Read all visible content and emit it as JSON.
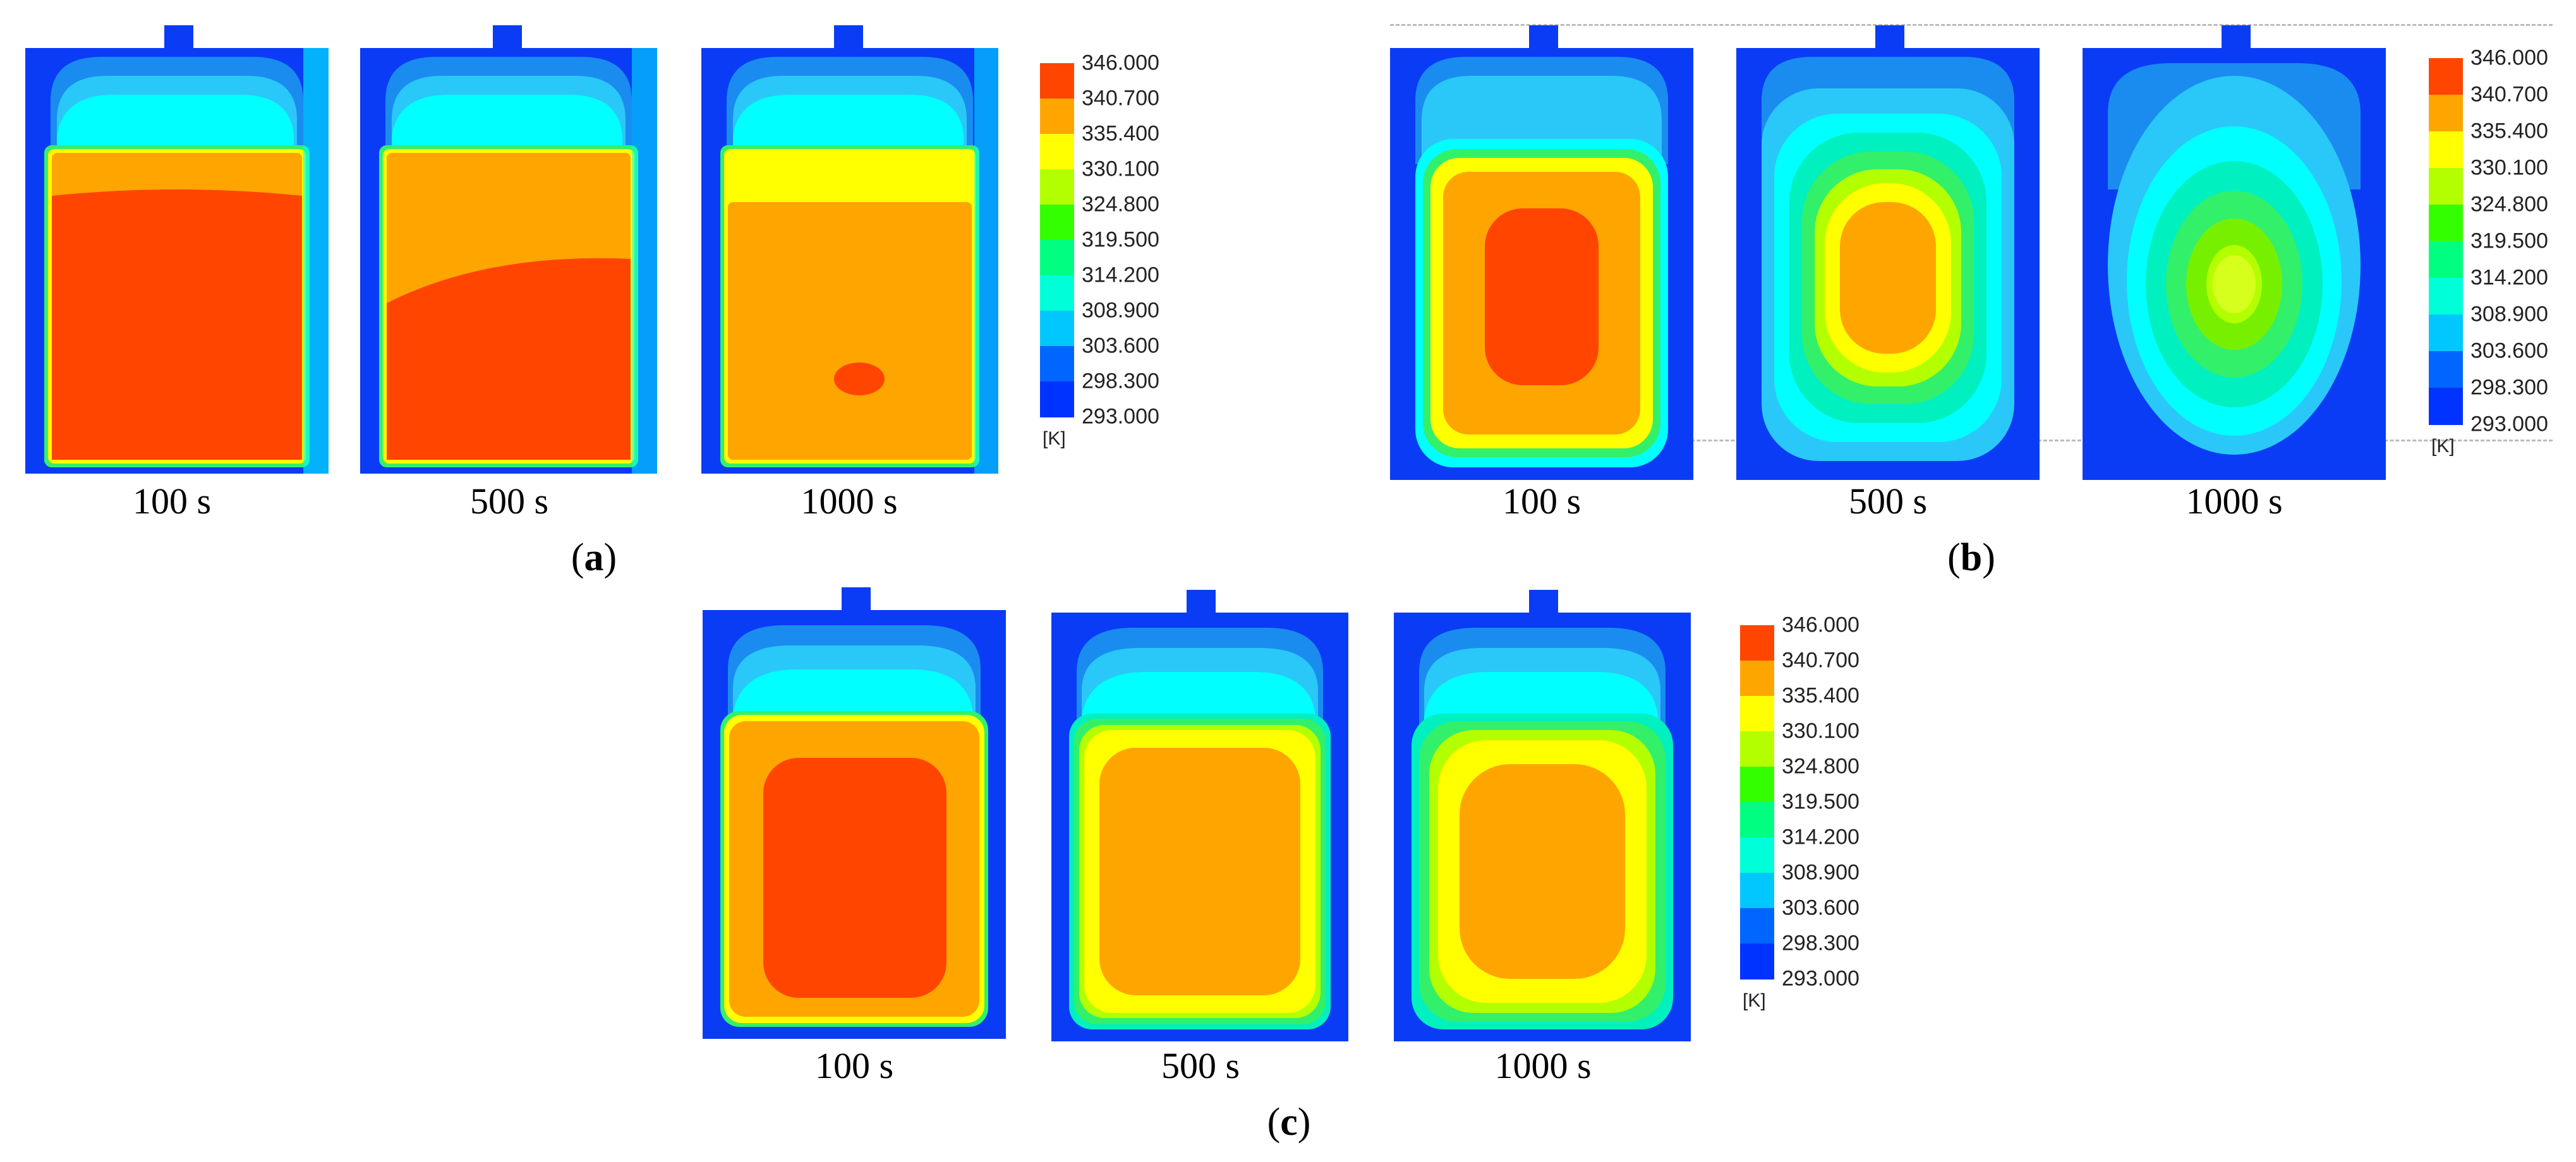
{
  "figure": {
    "panels": [
      {
        "id": "a",
        "label": "a",
        "captions": [
          "100 s",
          "500 s",
          "1000 s"
        ]
      },
      {
        "id": "b",
        "label": "b",
        "captions": [
          "100 s",
          "500 s",
          "1000 s"
        ]
      },
      {
        "id": "c",
        "label": "c",
        "captions": [
          "100 s",
          "500 s",
          "1000 s"
        ]
      }
    ],
    "legend": {
      "values": [
        "346.000",
        "340.700",
        "335.400",
        "330.100",
        "324.800",
        "319.500",
        "314.200",
        "308.900",
        "303.600",
        "298.300",
        "293.000"
      ],
      "unit": "[K]",
      "colors": [
        "#ff4500",
        "#ffa500",
        "#ffff00",
        "#b3ff00",
        "#33ff00",
        "#00ff80",
        "#00ffd9",
        "#00c8ff",
        "#0066ff",
        "#0033ff"
      ]
    },
    "colors": {
      "c293": "#0a3cf5",
      "c298": "#1a8cf0",
      "c303": "#2ac8f8",
      "c308": "#00ffff",
      "c314": "#00f0c0",
      "c319": "#33f06a",
      "c324": "#77f000",
      "c330": "#ffff00",
      "c335": "#ffd200",
      "c340": "#ffa500",
      "c346": "#ff4500"
    }
  }
}
